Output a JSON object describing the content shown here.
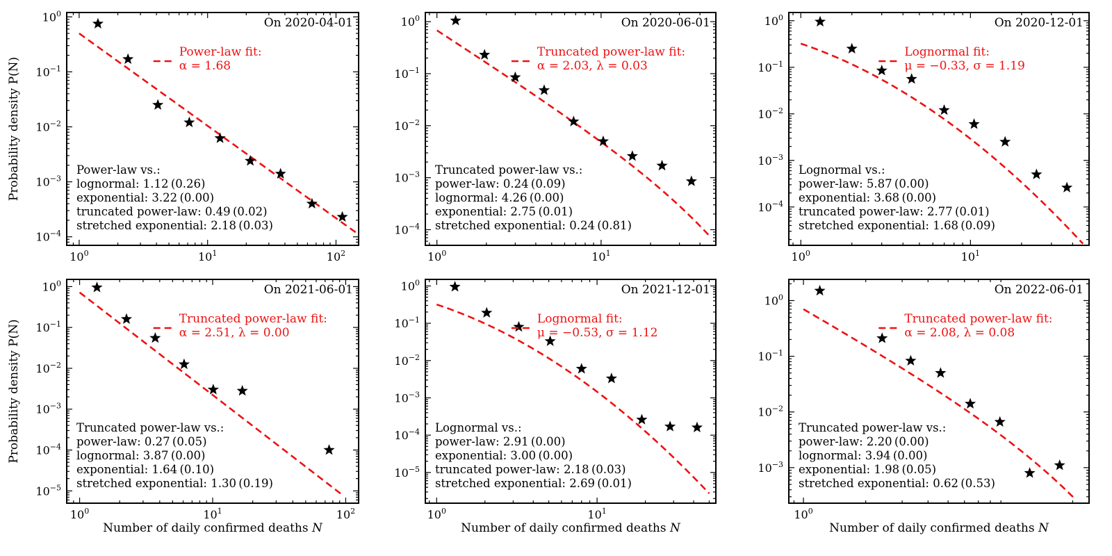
{
  "figure": {
    "xlabel": "Number of daily confirmed deaths N",
    "ylabel": "Probability density P(N)"
  },
  "chart_data": [
    {
      "type": "scatter",
      "title": "On 2020-04-01",
      "xlim": [
        0.8,
        150
      ],
      "ylim": [
        7e-05,
        1.2
      ],
      "xticks": [
        1,
        10,
        100
      ],
      "xtick_labels": [
        "10^0",
        "10^1",
        "10^2"
      ],
      "yticks": [
        0.0001,
        0.001,
        0.01,
        0.1,
        1
      ],
      "ytick_labels": [
        "10^-4",
        "10^-3",
        "10^-2",
        "10^-1",
        "10^0"
      ],
      "points": [
        [
          1.4,
          0.75
        ],
        [
          2.4,
          0.17
        ],
        [
          4.1,
          0.025
        ],
        [
          7.2,
          0.012
        ],
        [
          12.5,
          0.0062
        ],
        [
          21.5,
          0.0024
        ],
        [
          37,
          0.0014
        ],
        [
          65,
          0.0004
        ],
        [
          112,
          0.00023
        ]
      ],
      "fit": {
        "kind": "power-law",
        "alpha": 1.68,
        "c": 0.5,
        "x_range": [
          1,
          145
        ]
      },
      "legend_label": "Power-law fit:",
      "legend_params": "α = 1.68",
      "comparison_title": "Power-law vs.:",
      "comparisons": [
        {
          "name": "lognormal",
          "value": "1.12",
          "p": "(0.26)"
        },
        {
          "name": "exponential",
          "value": "3.22",
          "p": "(0.00)"
        },
        {
          "name": "truncated power-law",
          "value": "0.49",
          "p": "(0.02)"
        },
        {
          "name": "stretched exponential",
          "value": "2.18",
          "p": "(0.03)"
        }
      ]
    },
    {
      "type": "scatter",
      "title": "On 2020-06-01",
      "xlim": [
        0.85,
        50
      ],
      "ylim": [
        5e-05,
        1.5
      ],
      "xticks": [
        1,
        10
      ],
      "xtick_labels": [
        "10^0",
        "10^1"
      ],
      "yticks": [
        0.0001,
        0.001,
        0.01,
        0.1,
        1
      ],
      "ytick_labels": [
        "10^-4",
        "10^-3",
        "10^-2",
        "10^-1",
        "10^0"
      ],
      "points": [
        [
          1.3,
          1.05
        ],
        [
          1.95,
          0.23
        ],
        [
          3.0,
          0.085
        ],
        [
          4.5,
          0.048
        ],
        [
          6.8,
          0.012
        ],
        [
          10.3,
          0.005
        ],
        [
          15.5,
          0.0026
        ],
        [
          23.5,
          0.0017
        ],
        [
          35.5,
          0.00085
        ]
      ],
      "fit": {
        "kind": "truncated-power-law",
        "alpha": 2.03,
        "lambda": 0.03,
        "c": 0.68,
        "x_range": [
          1,
          46
        ]
      },
      "legend_label": "Truncated power-law fit:",
      "legend_params": "α = 2.03, λ = 0.03",
      "comparison_title": "Truncated power-law vs.:",
      "comparisons": [
        {
          "name": "power-law",
          "value": "0.24",
          "p": "(0.09)"
        },
        {
          "name": "lognormal",
          "value": "4.26",
          "p": "(0.00)"
        },
        {
          "name": "exponential",
          "value": "2.75",
          "p": "(0.01)"
        },
        {
          "name": "stretched exponential",
          "value": "0.24",
          "p": "(0.81)"
        }
      ]
    },
    {
      "type": "scatter",
      "title": "On 2020-12-01",
      "xlim": [
        0.85,
        50
      ],
      "ylim": [
        1.5e-05,
        1.5
      ],
      "xticks": [
        1,
        10
      ],
      "xtick_labels": [
        "10^0",
        "10^1"
      ],
      "yticks": [
        0.0001,
        0.001,
        0.01,
        0.1,
        1
      ],
      "ytick_labels": [
        "10^-4",
        "10^-3",
        "10^-2",
        "10^-1",
        "10^0"
      ],
      "points": [
        [
          1.3,
          0.95
        ],
        [
          2.0,
          0.25
        ],
        [
          3.0,
          0.085
        ],
        [
          4.5,
          0.056
        ],
        [
          7.0,
          0.012
        ],
        [
          10.5,
          0.006
        ],
        [
          16.0,
          0.0025
        ],
        [
          24.5,
          0.0005
        ],
        [
          37.0,
          0.00026
        ]
      ],
      "fit": {
        "kind": "lognormal",
        "mu": -0.33,
        "sigma": 1.19,
        "x_range": [
          1,
          46
        ]
      },
      "legend_label": "Lognormal fit:",
      "legend_params": "μ = −0.33, σ = 1.19",
      "comparison_title": "Lognormal vs.:",
      "comparisons": [
        {
          "name": "power-law",
          "value": "5.87",
          "p": "(0.00)"
        },
        {
          "name": "exponential",
          "value": "3.68",
          "p": "(0.00)"
        },
        {
          "name": "truncated power-law",
          "value": "2.77",
          "p": "(0.01)"
        },
        {
          "name": "stretched exponential",
          "value": "1.68",
          "p": "(0.09)"
        }
      ]
    },
    {
      "type": "scatter",
      "title": "On 2021-06-01",
      "xlim": [
        0.8,
        125
      ],
      "ylim": [
        5e-06,
        1.5
      ],
      "xticks": [
        1,
        10,
        100
      ],
      "xtick_labels": [
        "10^0",
        "10^1",
        "10^2"
      ],
      "yticks": [
        1e-05,
        0.0001,
        0.001,
        0.01,
        0.1,
        1
      ],
      "ytick_labels": [
        "10^-5",
        "10^-4",
        "10^-3",
        "10^-2",
        "10^-1",
        "10^0"
      ],
      "points": [
        [
          1.35,
          0.95
        ],
        [
          2.25,
          0.16
        ],
        [
          3.7,
          0.055
        ],
        [
          6.1,
          0.0125
        ],
        [
          10.1,
          0.003
        ],
        [
          16.7,
          0.0028
        ],
        [
          75,
          0.0001
        ]
      ],
      "fit": {
        "kind": "truncated-power-law",
        "alpha": 2.51,
        "lambda": 0.0,
        "c": 0.72,
        "x_range": [
          1,
          93
        ]
      },
      "legend_label": "Truncated power-law fit:",
      "legend_params": "α = 2.51, λ = 0.00",
      "comparison_title": "Truncated power-law vs.:",
      "comparisons": [
        {
          "name": "power-law",
          "value": "0.27",
          "p": "(0.05)"
        },
        {
          "name": "lognormal",
          "value": "3.87",
          "p": "(0.00)"
        },
        {
          "name": "exponential",
          "value": "1.64",
          "p": "(0.10)"
        },
        {
          "name": "stretched exponential",
          "value": "1.30",
          "p": "(0.19)"
        }
      ]
    },
    {
      "type": "scatter",
      "title": "On 2021-12-01",
      "xlim": [
        0.85,
        55
      ],
      "ylim": [
        1.5e-06,
        1.5
      ],
      "xticks": [
        1,
        10
      ],
      "xtick_labels": [
        "10^0",
        "10^1"
      ],
      "yticks": [
        1e-05,
        0.0001,
        0.001,
        0.01,
        0.1,
        1
      ],
      "ytick_labels": [
        "10^-5",
        "10^-4",
        "10^-3",
        "10^-2",
        "10^-1",
        "10^0"
      ],
      "points": [
        [
          1.3,
          0.95
        ],
        [
          2.05,
          0.19
        ],
        [
          3.25,
          0.08
        ],
        [
          5.1,
          0.033
        ],
        [
          8.0,
          0.006
        ],
        [
          12.3,
          0.0033
        ],
        [
          19.0,
          0.00026
        ],
        [
          28.5,
          0.00017
        ],
        [
          42.0,
          0.00016
        ]
      ],
      "fit": {
        "kind": "lognormal",
        "mu": -0.53,
        "sigma": 1.12,
        "x_range": [
          1,
          50
        ]
      },
      "legend_label": "Lognormal fit:",
      "legend_params": "μ = −0.53, σ = 1.12",
      "comparison_title": "Lognormal vs.:",
      "comparisons": [
        {
          "name": "power-law",
          "value": "2.91",
          "p": "(0.00)"
        },
        {
          "name": "exponential",
          "value": "3.00",
          "p": "(0.00)"
        },
        {
          "name": "truncated power-law",
          "value": "2.18",
          "p": "(0.03)"
        },
        {
          "name": "stretched exponential",
          "value": "2.69",
          "p": "(0.01)"
        }
      ]
    },
    {
      "type": "scatter",
      "title": "On 2022-06-01",
      "xlim": [
        0.85,
        24
      ],
      "ylim": [
        0.00023,
        2.4
      ],
      "xticks": [
        1
      ],
      "xtick_labels": [
        "10^0"
      ],
      "yticks": [
        0.001,
        0.01,
        0.1,
        1
      ],
      "ytick_labels": [
        "10^-3",
        "10^-2",
        "10^-1",
        "10^0"
      ],
      "points": [
        [
          1.2,
          1.5
        ],
        [
          2.4,
          0.21
        ],
        [
          3.3,
          0.083
        ],
        [
          4.6,
          0.05
        ],
        [
          6.4,
          0.014
        ],
        [
          8.9,
          0.0066
        ],
        [
          12.4,
          0.0008
        ],
        [
          17.3,
          0.0011
        ]
      ],
      "fit": {
        "kind": "truncated-power-law",
        "alpha": 2.08,
        "lambda": 0.08,
        "c": 0.7,
        "x_range": [
          1,
          20.2
        ]
      },
      "legend_label": "Truncated power-law fit:",
      "legend_params": "α = 2.08, λ = 0.08",
      "comparison_title": "Truncated power-law vs.:",
      "comparisons": [
        {
          "name": "power-law",
          "value": "2.20",
          "p": "(0.00)"
        },
        {
          "name": "lognormal",
          "value": "3.94",
          "p": "(0.00)"
        },
        {
          "name": "exponential",
          "value": "1.98",
          "p": "(0.05)"
        },
        {
          "name": "stretched exponential",
          "value": "0.62",
          "p": "(0.53)"
        }
      ]
    }
  ]
}
